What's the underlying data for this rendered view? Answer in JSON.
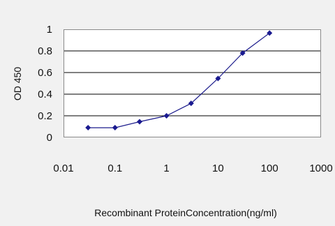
{
  "chart_data": {
    "type": "line",
    "title": "",
    "xlabel": "Recombinant ProteinConcentration(ng/ml)",
    "ylabel": "OD 450",
    "x_scale": "log",
    "xlim": [
      0.01,
      1000
    ],
    "ylim": [
      0,
      1
    ],
    "x_ticks": [
      {
        "value": 0.01,
        "label": "0.01"
      },
      {
        "value": 0.1,
        "label": "0.1"
      },
      {
        "value": 1,
        "label": "1"
      },
      {
        "value": 10,
        "label": "10"
      },
      {
        "value": 100,
        "label": "100"
      },
      {
        "value": 1000,
        "label": "1000"
      }
    ],
    "y_ticks": [
      {
        "value": 0,
        "label": "0"
      },
      {
        "value": 0.2,
        "label": "0.2"
      },
      {
        "value": 0.4,
        "label": "0.4"
      },
      {
        "value": 0.6,
        "label": "0.6"
      },
      {
        "value": 0.8,
        "label": "0.8"
      },
      {
        "value": 1,
        "label": "1"
      }
    ],
    "grid": "horizontal",
    "legend": "none",
    "colors": {
      "series": "#1c1c8c",
      "marker": "#1a1a90",
      "plot_background": "#ffffff",
      "gridline": "#000000",
      "page_background": "#f1f1f1"
    },
    "series": [
      {
        "points": [
          {
            "x": 0.03,
            "y": 0.09
          },
          {
            "x": 0.1,
            "y": 0.09
          },
          {
            "x": 0.3,
            "y": 0.145
          },
          {
            "x": 1,
            "y": 0.2
          },
          {
            "x": 3,
            "y": 0.315
          },
          {
            "x": 10,
            "y": 0.545
          },
          {
            "x": 30,
            "y": 0.78
          },
          {
            "x": 100,
            "y": 0.965
          }
        ]
      }
    ]
  }
}
